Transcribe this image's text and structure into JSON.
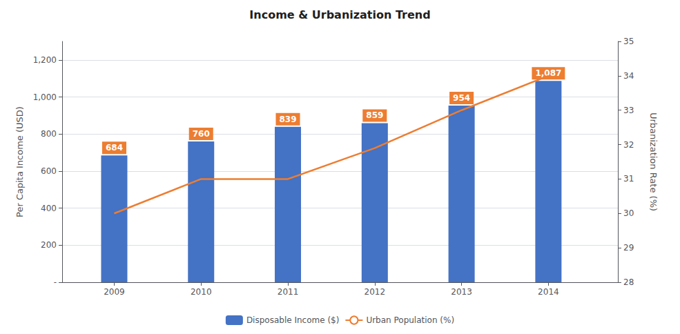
{
  "chart_data": {
    "type": "bar",
    "title": "Income & Urbanization Trend",
    "x": [
      2009,
      2010,
      2011,
      2012,
      2013,
      2014
    ],
    "xlim": [
      2008.4,
      2014.8
    ],
    "xticks": [
      2009,
      2010,
      2011,
      2012,
      2013,
      2014
    ],
    "ylabel": "Per Capita Income (USD)",
    "y2label": "Urbanization Rate (%)",
    "ylim": [
      0,
      1300
    ],
    "yticks": [
      {
        "value": 0,
        "label": "-"
      },
      200,
      400,
      600,
      800,
      {
        "value": 1000,
        "label": "1,000"
      },
      {
        "value": 1200,
        "label": "1,200"
      }
    ],
    "y2lim": [
      28,
      35
    ],
    "y2ticks": [
      28,
      29,
      30,
      31,
      32,
      33,
      34,
      35
    ],
    "grid": true,
    "legend": "bottom",
    "series": [
      {
        "name": "Disposable Income ($)",
        "type": "bar",
        "color": "#4472C4",
        "values": [
          684,
          760,
          839,
          859,
          954,
          1087
        ],
        "data_labels": true,
        "value_labels": [
          "684",
          "760",
          "839",
          "859",
          "954",
          "1,087"
        ]
      },
      {
        "name": "Urban Population (%)",
        "type": "line",
        "color": "#ED7D31",
        "axis": "y2",
        "values": [
          30.0,
          31.0,
          31.0,
          31.9,
          33.0,
          34.0
        ]
      }
    ]
  }
}
